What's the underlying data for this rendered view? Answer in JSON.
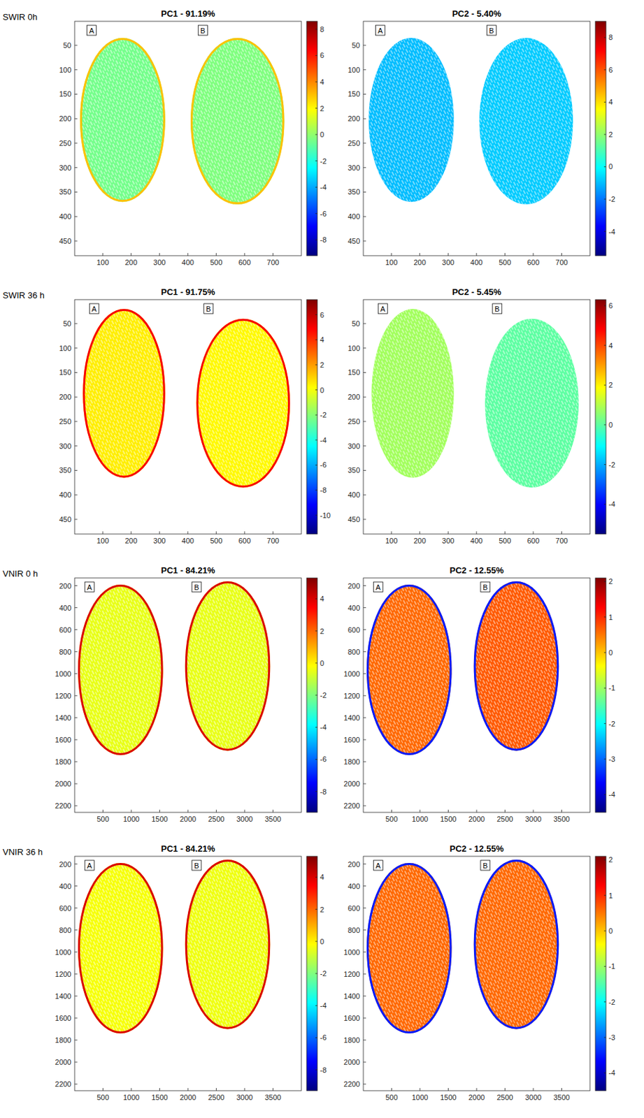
{
  "chart_data": [
    {
      "type": "image",
      "label": "SWIR 0h",
      "title": "PC1 - 91.19%",
      "xlim": [
        1,
        800
      ],
      "xticks": [
        100,
        200,
        300,
        400,
        500,
        600,
        700
      ],
      "ylim": [
        1,
        480
      ],
      "yticks": [
        50,
        100,
        150,
        200,
        250,
        300,
        350,
        400,
        450
      ],
      "colorbar": {
        "range": [
          -9.2,
          8.6
        ],
        "ticks": [
          -8,
          -6,
          -4,
          -2,
          0,
          2,
          4,
          6,
          8
        ],
        "colors": [
          "#00007f",
          "#0000ff",
          "#007fff",
          "#00ffff",
          "#7fff7f",
          "#ffff00",
          "#ff7f00",
          "#ff0000",
          "#7f0000"
        ]
      },
      "samples": [
        {
          "label": "A",
          "x": [
            20,
            320
          ],
          "y": [
            35,
            370
          ],
          "value": -0.5,
          "rim": 3
        },
        {
          "label": "B",
          "x": [
            410,
            740
          ],
          "y": [
            35,
            375
          ],
          "value": -0.3,
          "rim": 3
        }
      ]
    },
    {
      "type": "image",
      "title": "PC2 - 5.40%",
      "xlim": [
        1,
        800
      ],
      "xticks": [
        100,
        200,
        300,
        400,
        500,
        600,
        700
      ],
      "ylim": [
        1,
        480
      ],
      "yticks": [
        50,
        100,
        150,
        200,
        250,
        300,
        350,
        400,
        450
      ],
      "colorbar": {
        "range": [
          -5.5,
          9
        ],
        "ticks": [
          -4,
          -2,
          0,
          2,
          4,
          6,
          8
        ],
        "colors": [
          "#00007f",
          "#0000ff",
          "#007fff",
          "#00ffff",
          "#7fff7f",
          "#ffff00",
          "#ff7f00",
          "#ff0000",
          "#7f0000"
        ]
      },
      "samples": [
        {
          "label": "A",
          "x": [
            20,
            320
          ],
          "y": [
            35,
            370
          ],
          "value": -1
        },
        {
          "label": "B",
          "x": [
            410,
            740
          ],
          "y": [
            35,
            375
          ],
          "value": -0.8
        }
      ]
    },
    {
      "type": "image",
      "label": "SWIR 36 h",
      "title": "PC1 - 91.75%",
      "xlim": [
        1,
        800
      ],
      "xticks": [
        100,
        200,
        300,
        400,
        500,
        600,
        700
      ],
      "ylim": [
        1,
        480
      ],
      "yticks": [
        50,
        100,
        150,
        200,
        250,
        300,
        350,
        400,
        450
      ],
      "colorbar": {
        "range": [
          -11.5,
          7.2
        ],
        "ticks": [
          -10,
          -8,
          -6,
          -4,
          -2,
          0,
          2,
          4,
          6
        ],
        "colors": [
          "#00007f",
          "#0000ff",
          "#007fff",
          "#00ffff",
          "#7fff7f",
          "#ffff00",
          "#ff7f00",
          "#ff0000",
          "#7f0000"
        ]
      },
      "samples": [
        {
          "label": "A",
          "x": [
            30,
            320
          ],
          "y": [
            20,
            365
          ],
          "value": 0.5,
          "rim": 5
        },
        {
          "label": "B",
          "x": [
            430,
            760
          ],
          "y": [
            40,
            385
          ],
          "value": 0.3,
          "rim": 5
        }
      ]
    },
    {
      "type": "image",
      "title": "PC2 - 5.45%",
      "xlim": [
        1,
        800
      ],
      "xticks": [
        100,
        200,
        300,
        400,
        500,
        600,
        700
      ],
      "ylim": [
        1,
        480
      ],
      "yticks": [
        50,
        100,
        150,
        200,
        250,
        300,
        350,
        400,
        450
      ],
      "colorbar": {
        "range": [
          -5.5,
          6.3
        ],
        "ticks": [
          -4,
          -2,
          0,
          2,
          4,
          6
        ],
        "colors": [
          "#00007f",
          "#0000ff",
          "#007fff",
          "#00ffff",
          "#7fff7f",
          "#ffff00",
          "#ff7f00",
          "#ff0000",
          "#7f0000"
        ]
      },
      "samples": [
        {
          "label": "A",
          "x": [
            30,
            320
          ],
          "y": [
            20,
            365
          ],
          "value": 0.8
        },
        {
          "label": "B",
          "x": [
            430,
            760
          ],
          "y": [
            40,
            385
          ],
          "value": 0
        }
      ]
    },
    {
      "type": "image",
      "label": "VNIR 0 h",
      "title": "PC1 - 84.21%",
      "xlim": [
        1,
        4000
      ],
      "xticks": [
        500,
        1000,
        1500,
        2000,
        2500,
        3000,
        3500
      ],
      "ylim": [
        130,
        2260
      ],
      "yticks": [
        200,
        400,
        600,
        800,
        1000,
        1200,
        1400,
        1600,
        1800,
        2000,
        2200
      ],
      "colorbar": {
        "range": [
          -9.3,
          5.3
        ],
        "ticks": [
          -8,
          -6,
          -4,
          -2,
          0,
          2,
          4
        ],
        "colors": [
          "#00007f",
          "#0000ff",
          "#007fff",
          "#00ffff",
          "#7fff7f",
          "#ffff00",
          "#ff7f00",
          "#ff0000",
          "#7f0000"
        ]
      },
      "samples": [
        {
          "label": "A",
          "x": [
            60,
            1560
          ],
          "y": [
            190,
            1740
          ],
          "value": -0.5,
          "rim": 4
        },
        {
          "label": "B",
          "x": [
            1950,
            3450
          ],
          "y": [
            160,
            1700
          ],
          "value": -0.5,
          "rim": 4
        }
      ]
    },
    {
      "type": "image",
      "title": "PC2 - 12.55%",
      "xlim": [
        1,
        4000
      ],
      "xticks": [
        500,
        1000,
        1500,
        2000,
        2500,
        3000,
        3500
      ],
      "ylim": [
        130,
        2260
      ],
      "yticks": [
        200,
        400,
        600,
        800,
        1000,
        1200,
        1400,
        1600,
        1800,
        2000,
        2200
      ],
      "colorbar": {
        "range": [
          -4.5,
          2.1
        ],
        "ticks": [
          -4,
          -3,
          -2,
          -1,
          0,
          1,
          2
        ],
        "colors": [
          "#00007f",
          "#0000ff",
          "#007fff",
          "#00ffff",
          "#7fff7f",
          "#ffff00",
          "#ff7f00",
          "#ff0000",
          "#7f0000"
        ]
      },
      "samples": [
        {
          "label": "A",
          "x": [
            60,
            1560
          ],
          "y": [
            190,
            1740
          ],
          "value": 0.6,
          "rim": -3.5
        },
        {
          "label": "B",
          "x": [
            1950,
            3450
          ],
          "y": [
            160,
            1700
          ],
          "value": 0.7,
          "rim": -3.5
        }
      ]
    },
    {
      "type": "image",
      "label": "VNIR 36 h",
      "title": "PC1 - 84.21%",
      "xlim": [
        1,
        4000
      ],
      "xticks": [
        500,
        1000,
        1500,
        2000,
        2500,
        3000,
        3500
      ],
      "ylim": [
        130,
        2260
      ],
      "yticks": [
        200,
        400,
        600,
        800,
        1000,
        1200,
        1400,
        1600,
        1800,
        2000,
        2200
      ],
      "colorbar": {
        "range": [
          -9.3,
          5.3
        ],
        "ticks": [
          -8,
          -6,
          -4,
          -2,
          0,
          2,
          4
        ],
        "colors": [
          "#00007f",
          "#0000ff",
          "#007fff",
          "#00ffff",
          "#7fff7f",
          "#ffff00",
          "#ff7f00",
          "#ff0000",
          "#7f0000"
        ]
      },
      "samples": [
        {
          "label": "A",
          "x": [
            60,
            1560
          ],
          "y": [
            190,
            1740
          ],
          "value": -0.3,
          "rim": 4
        },
        {
          "label": "B",
          "x": [
            1950,
            3450
          ],
          "y": [
            160,
            1700
          ],
          "value": -0.4,
          "rim": 4
        }
      ]
    },
    {
      "type": "image",
      "title": "PC2 - 12.55%",
      "xlim": [
        1,
        4000
      ],
      "xticks": [
        500,
        1000,
        1500,
        2000,
        2500,
        3000,
        3500
      ],
      "ylim": [
        130,
        2260
      ],
      "yticks": [
        200,
        400,
        600,
        800,
        1000,
        1200,
        1400,
        1600,
        1800,
        2000,
        2200
      ],
      "colorbar": {
        "range": [
          -4.5,
          2.1
        ],
        "ticks": [
          -4,
          -3,
          -2,
          -1,
          0,
          1,
          2
        ],
        "colors": [
          "#00007f",
          "#0000ff",
          "#007fff",
          "#00ffff",
          "#7fff7f",
          "#ffff00",
          "#ff7f00",
          "#ff0000",
          "#7f0000"
        ]
      },
      "samples": [
        {
          "label": "A",
          "x": [
            60,
            1560
          ],
          "y": [
            190,
            1740
          ],
          "value": 0.6,
          "rim": -3.5
        },
        {
          "label": "B",
          "x": [
            1950,
            3450
          ],
          "y": [
            160,
            1700
          ],
          "value": 0.6,
          "rim": -3.5
        }
      ]
    }
  ]
}
